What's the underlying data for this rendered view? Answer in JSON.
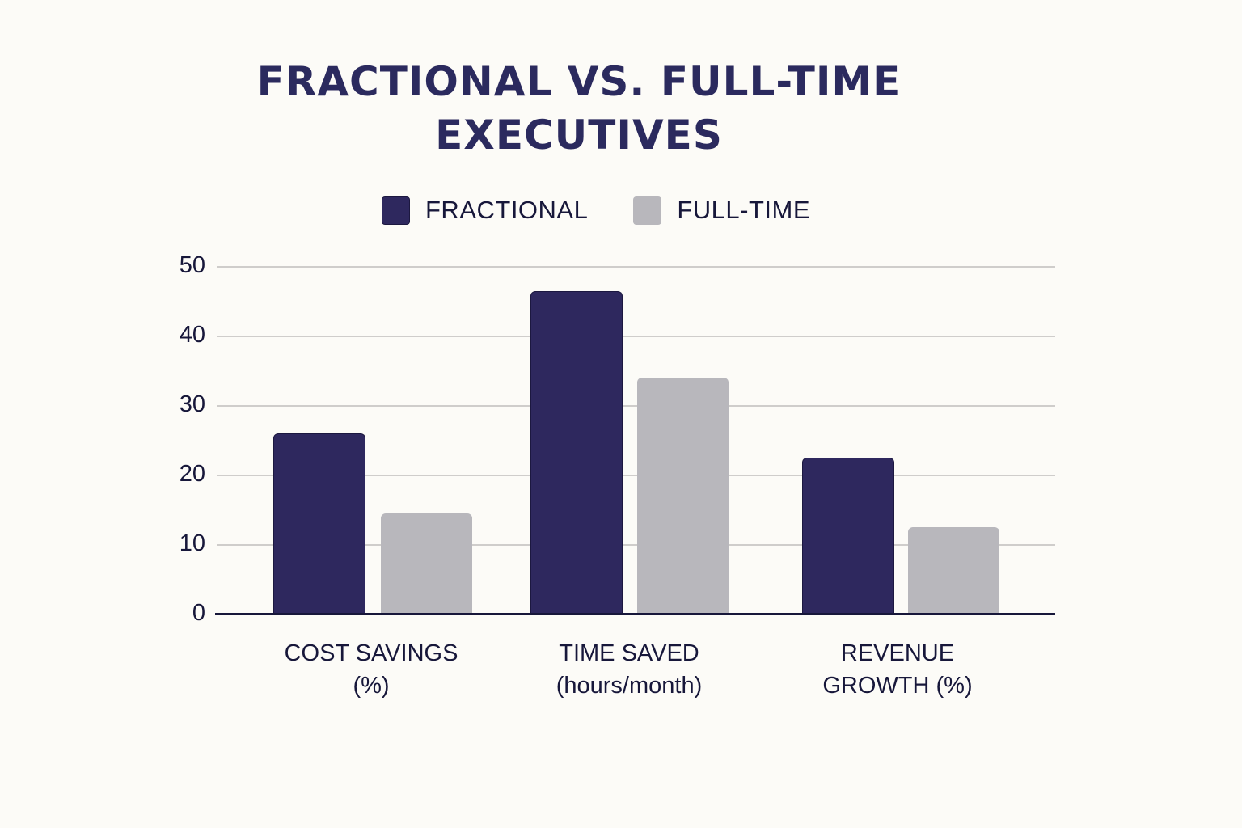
{
  "title_line1": "FRACTIONAL VS. FULL-TIME",
  "title_line2": "EXECUTIVES",
  "legend": [
    {
      "label": "FRACTIONAL",
      "color": "#2e285e"
    },
    {
      "label": "FULL-TIME",
      "color": "#b8b7bc"
    }
  ],
  "y_ticks": [
    "0",
    "10",
    "20",
    "30",
    "40",
    "50"
  ],
  "categories": [
    {
      "line1": "COST SAVINGS",
      "line2": "(%)"
    },
    {
      "line1": "TIME SAVED",
      "line2": "(hours/month)"
    },
    {
      "line1": "REVENUE",
      "line2": "GROWTH (%)"
    }
  ],
  "chart_data": {
    "type": "bar",
    "title": "FRACTIONAL VS. FULL-TIME EXECUTIVES",
    "categories": [
      "COST SAVINGS (%)",
      "TIME SAVED (hours/month)",
      "REVENUE GROWTH (%)"
    ],
    "series": [
      {
        "name": "FRACTIONAL",
        "color": "#2e285e",
        "values": [
          26,
          46.5,
          22.5
        ]
      },
      {
        "name": "FULL-TIME",
        "color": "#b8b7bc",
        "values": [
          14.5,
          34,
          12.5
        ]
      }
    ],
    "xlabel": "",
    "ylabel": "",
    "ylim": [
      0,
      50
    ],
    "yticks": [
      0,
      10,
      20,
      30,
      40,
      50
    ],
    "grid": true,
    "legend_position": "top"
  }
}
